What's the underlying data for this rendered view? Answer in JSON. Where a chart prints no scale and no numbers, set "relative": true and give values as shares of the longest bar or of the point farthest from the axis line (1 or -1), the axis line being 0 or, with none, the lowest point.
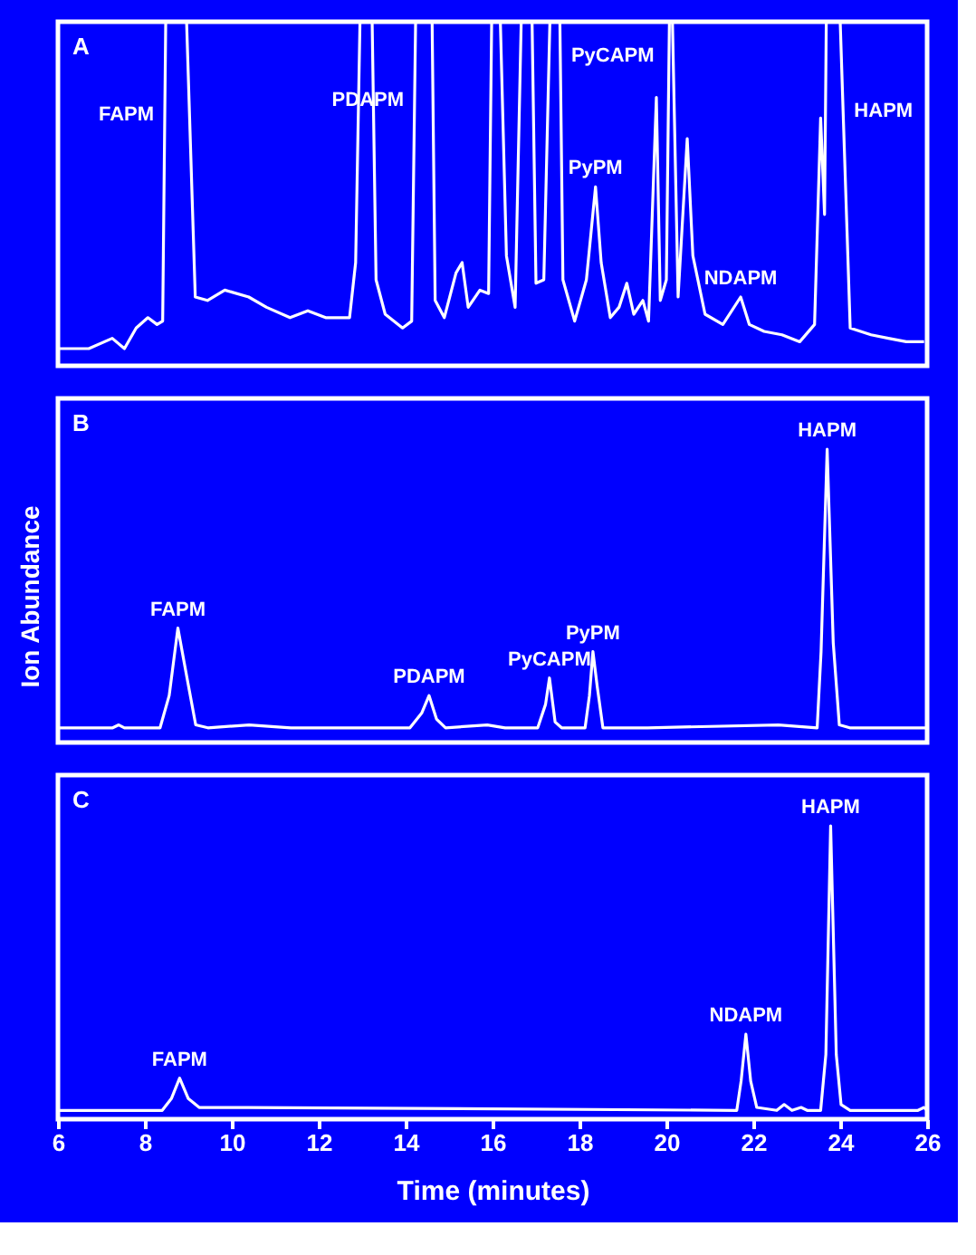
{
  "chart_data": [
    {
      "type": "line",
      "relative": true,
      "xlim": [
        6,
        26
      ],
      "tick_labels": false,
      "grid": false,
      "annotations": [
        "A",
        {
          "text": "FAPM",
          "x": 8.46,
          "y": 0.73
        },
        {
          "text": "PDAPM",
          "x": 14.21,
          "y": 0.77
        },
        {
          "text": "PyCAPM",
          "x": 17.56,
          "y": 0.9
        },
        {
          "text": "PyPM",
          "x": 18.37,
          "y": 0.52
        },
        {
          "text": "NDAPM",
          "x": 21.71,
          "y": 0.2
        },
        {
          "text": "HAPM",
          "x": 24.07,
          "y": 0.74
        }
      ],
      "series": [
        {
          "color": "#ffffff",
          "x": [
            6.0,
            6.71,
            7.25,
            7.53,
            7.8,
            8.07,
            8.28,
            8.41,
            8.48,
            8.96,
            9.16,
            9.44,
            9.84,
            10.39,
            10.8,
            11.34,
            11.75,
            12.16,
            12.71,
            12.85,
            12.95,
            13.23,
            13.32,
            13.53,
            13.93,
            14.14,
            14.23,
            14.61,
            14.68,
            14.89,
            15.16,
            15.3,
            15.44,
            15.71,
            15.91,
            15.98,
            16.18,
            16.32,
            16.52,
            16.66,
            16.91,
            17.0,
            17.18,
            17.32,
            17.55,
            17.62,
            17.89,
            18.16,
            18.37,
            18.5,
            18.71,
            18.91,
            19.09,
            19.25,
            19.46,
            19.59,
            19.77,
            19.86,
            20.0,
            20.07,
            20.14,
            20.27,
            20.48,
            20.61,
            20.89,
            21.3,
            21.71,
            21.91,
            22.25,
            22.66,
            23.07,
            23.41,
            23.55,
            23.64,
            23.68,
            24.0,
            24.23,
            24.71,
            25.11,
            25.52,
            25.93
          ],
          "values": [
            0.05,
            0.05,
            0.08,
            0.05,
            0.11,
            0.14,
            0.12,
            0.13,
            1,
            1,
            0.2,
            0.19,
            0.22,
            0.2,
            0.17,
            0.14,
            0.16,
            0.14,
            0.14,
            0.3,
            1,
            1,
            0.25,
            0.15,
            0.11,
            0.13,
            1,
            1,
            0.19,
            0.14,
            0.27,
            0.3,
            0.17,
            0.22,
            0.21,
            1,
            1,
            0.32,
            0.17,
            1,
            1,
            0.24,
            0.25,
            1,
            1,
            0.25,
            0.13,
            0.25,
            0.52,
            0.3,
            0.14,
            0.17,
            0.24,
            0.15,
            0.19,
            0.13,
            0.78,
            0.19,
            0.25,
            1,
            1,
            0.2,
            0.66,
            0.32,
            0.15,
            0.12,
            0.2,
            0.12,
            0.1,
            0.09,
            0.07,
            0.12,
            0.72,
            0.44,
            1,
            1,
            0.11,
            0.09,
            0.08,
            0.07,
            0.07
          ]
        }
      ]
    },
    {
      "type": "line",
      "relative": true,
      "xlim": [
        6,
        26
      ],
      "tick_labels": false,
      "grid": false,
      "ylabel": "Ion Abundance",
      "annotations": [
        "B",
        {
          "text": "FAPM",
          "x": 8.76,
          "y": 0.39
        },
        {
          "text": "PDAPM",
          "x": 14.54,
          "y": 0.16
        },
        {
          "text": "PyCAPM",
          "x": 17.31,
          "y": 0.22
        },
        {
          "text": "PyPM",
          "x": 18.31,
          "y": 0.31
        },
        {
          "text": "HAPM",
          "x": 23.7,
          "y": 1
        }
      ],
      "series": [
        {
          "color": "#ffffff",
          "x": [
            6.0,
            7.26,
            7.4,
            7.53,
            8.35,
            8.56,
            8.76,
            8.97,
            9.17,
            9.45,
            10.4,
            11.36,
            14.1,
            14.37,
            14.54,
            14.71,
            14.92,
            15.88,
            16.29,
            17.04,
            17.22,
            17.31,
            17.44,
            17.59,
            18.13,
            18.23,
            18.31,
            18.41,
            18.54,
            19.57,
            22.58,
            23.47,
            23.56,
            23.7,
            23.84,
            23.98,
            24.22,
            26.0
          ],
          "values": [
            0.05,
            0.05,
            0.06,
            0.05,
            0.05,
            0.16,
            0.39,
            0.22,
            0.06,
            0.05,
            0.06,
            0.05,
            0.05,
            0.1,
            0.16,
            0.08,
            0.05,
            0.06,
            0.05,
            0.05,
            0.13,
            0.22,
            0.07,
            0.05,
            0.05,
            0.16,
            0.31,
            0.19,
            0.05,
            0.05,
            0.06,
            0.05,
            0.31,
            1,
            0.34,
            0.06,
            0.05,
            0.05
          ]
        }
      ]
    },
    {
      "type": "line",
      "relative": true,
      "xlim": [
        6,
        26
      ],
      "xticks": [
        6,
        8,
        10,
        12,
        14,
        16,
        18,
        20,
        22,
        24,
        26
      ],
      "tick_labels": "x",
      "grid": false,
      "xlabel": "Time (minutes)",
      "annotations": [
        "C",
        {
          "text": "FAPM",
          "x": 8.8,
          "y": 0.14
        },
        {
          "text": "NDAPM",
          "x": 21.83,
          "y": 0.29
        },
        {
          "text": "HAPM",
          "x": 23.78,
          "y": 1
        }
      ],
      "series": [
        {
          "color": "#ffffff",
          "x": [
            6.0,
            8.4,
            8.61,
            8.8,
            9.0,
            9.25,
            10.38,
            21.62,
            21.72,
            21.83,
            21.94,
            22.08,
            22.54,
            22.71,
            22.89,
            23.1,
            23.24,
            23.55,
            23.67,
            23.78,
            23.91,
            24.02,
            24.23,
            25.79,
            25.93,
            26.0
          ],
          "values": [
            0.03,
            0.03,
            0.07,
            0.14,
            0.07,
            0.04,
            0.04,
            0.03,
            0.13,
            0.29,
            0.13,
            0.04,
            0.03,
            0.05,
            0.03,
            0.04,
            0.03,
            0.03,
            0.22,
            1,
            0.22,
            0.05,
            0.03,
            0.03,
            0.04,
            0.03
          ]
        }
      ]
    }
  ]
}
